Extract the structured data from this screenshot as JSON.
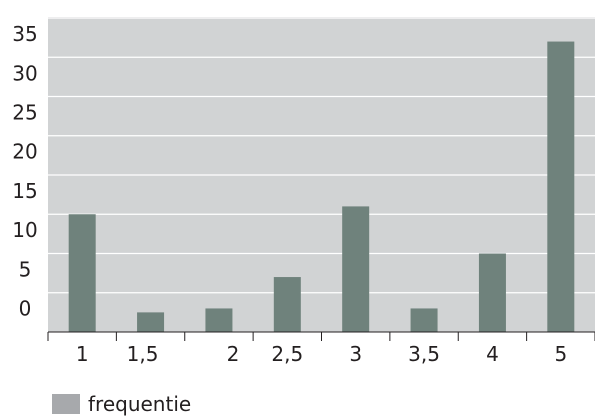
{
  "chart_data": {
    "type": "bar",
    "categories": [
      "1",
      "1,5",
      "2",
      "2,5",
      "3",
      "3,5",
      "4",
      "5"
    ],
    "values": [
      15,
      2.5,
      3,
      7,
      16,
      3,
      10,
      37
    ],
    "yticks": [
      "0",
      "5",
      "10",
      "15",
      "20",
      "25",
      "30",
      "35"
    ],
    "ylim": [
      0,
      40
    ],
    "grid": true,
    "legend": {
      "label": "frequentie",
      "position": "bottom-left"
    },
    "colors": {
      "bar": "#6f827c",
      "plot_bg": "#d1d3d4",
      "grid": "#ffffff",
      "legend_swatch": "#a7a9ac"
    }
  }
}
